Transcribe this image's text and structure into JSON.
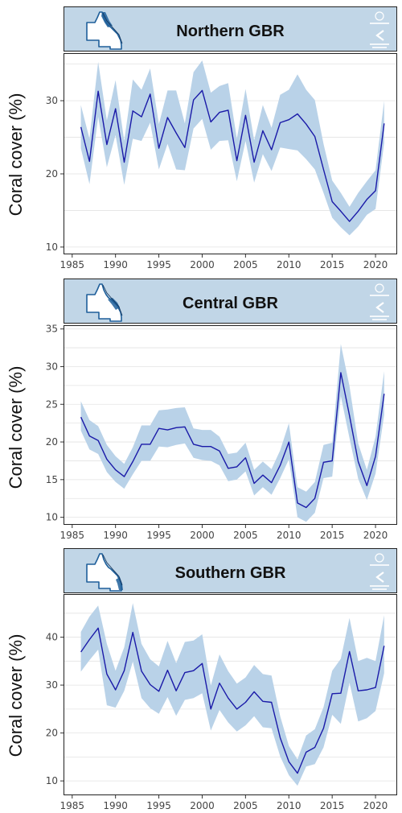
{
  "panels": [
    {
      "title": "Northern GBR",
      "ylabel": "Coral cover (%)",
      "region_highlight": "north"
    },
    {
      "title": "Central GBR",
      "ylabel": "Coral cover (%)",
      "region_highlight": "central"
    },
    {
      "title": "Southern GBR",
      "ylabel": "Coral cover (%)",
      "region_highlight": "south"
    }
  ],
  "colors": {
    "line": "#1a1aa8",
    "band": "#b9d2e8",
    "strip": "#c1d6e7",
    "gridline": "#e3e3e3",
    "map_land": "#ffffff",
    "map_outline": "#1f5f9a",
    "map_highlight": "#1f5f9a"
  },
  "chart_data": [
    {
      "type": "line",
      "title": "Northern GBR",
      "xlabel": "",
      "ylabel": "Coral cover (%)",
      "xlim": [
        1984,
        2022.5
      ],
      "ylim": [
        9,
        36.5
      ],
      "xticks": [
        1985,
        1990,
        1995,
        2000,
        2005,
        2010,
        2015,
        2020
      ],
      "yticks": [
        10,
        20,
        30
      ],
      "grid": true,
      "band": "confidence interval",
      "x": [
        1986,
        1987,
        1988,
        1989,
        1990,
        1991,
        1992,
        1993,
        1994,
        1995,
        1996,
        1997,
        1998,
        1999,
        2000,
        2001,
        2002,
        2003,
        2004,
        2005,
        2006,
        2007,
        2008,
        2009,
        2010,
        2011,
        2012,
        2013,
        2014,
        2015,
        2016,
        2017,
        2018,
        2019,
        2020,
        2021
      ],
      "y": [
        26.4,
        21.7,
        31.3,
        24.0,
        28.9,
        21.6,
        28.6,
        27.8,
        30.9,
        23.5,
        27.7,
        25.6,
        23.6,
        30.1,
        31.4,
        27.1,
        28.4,
        28.7,
        21.8,
        28.0,
        21.6,
        25.9,
        23.3,
        27.0,
        27.4,
        28.2,
        26.8,
        25.1,
        20.6,
        16.2,
        14.9,
        13.5,
        14.9,
        16.5,
        17.7,
        26.9
      ],
      "lower": [
        23.5,
        18.6,
        27.8,
        20.9,
        25.3,
        18.5,
        24.8,
        24.5,
        27.0,
        20.6,
        24.1,
        20.6,
        20.5,
        26.2,
        27.5,
        23.3,
        24.5,
        24.6,
        19.0,
        24.5,
        18.8,
        22.7,
        20.4,
        23.6,
        23.4,
        23.2,
        22.0,
        20.6,
        17.4,
        14.0,
        12.7,
        11.6,
        12.8,
        14.4,
        15.2,
        24.2
      ],
      "upper": [
        29.4,
        24.8,
        35.3,
        27.3,
        32.8,
        24.5,
        32.9,
        31.5,
        34.4,
        26.8,
        31.4,
        31.4,
        26.9,
        33.9,
        35.5,
        31.1,
        32.0,
        32.4,
        24.8,
        31.6,
        24.6,
        29.4,
        26.3,
        30.8,
        31.5,
        33.6,
        31.5,
        30.1,
        24.1,
        19.1,
        17.4,
        15.5,
        17.4,
        19.0,
        20.5,
        30.0
      ]
    },
    {
      "type": "line",
      "title": "Central GBR",
      "xlabel": "",
      "ylabel": "Coral cover (%)",
      "xlim": [
        1984,
        2022.5
      ],
      "ylim": [
        9,
        35.5
      ],
      "xticks": [
        1985,
        1990,
        1995,
        2000,
        2005,
        2010,
        2015,
        2020
      ],
      "yticks": [
        10,
        15,
        20,
        25,
        30,
        35
      ],
      "grid": true,
      "band": "confidence interval",
      "x": [
        1986,
        1987,
        1988,
        1989,
        1990,
        1991,
        1992,
        1993,
        1994,
        1995,
        1996,
        1997,
        1998,
        1999,
        2000,
        2001,
        2002,
        2003,
        2004,
        2005,
        2006,
        2007,
        2008,
        2009,
        2010,
        2011,
        2012,
        2013,
        2014,
        2015,
        2016,
        2017,
        2018,
        2019,
        2020,
        2021
      ],
      "y": [
        23.3,
        20.8,
        20.2,
        17.7,
        16.3,
        15.4,
        17.4,
        19.7,
        19.7,
        21.8,
        21.6,
        21.9,
        22.0,
        19.7,
        19.4,
        19.4,
        18.8,
        16.5,
        16.7,
        17.9,
        14.5,
        15.6,
        14.6,
        16.9,
        20.0,
        11.9,
        11.3,
        12.5,
        17.3,
        17.5,
        29.2,
        23.5,
        17.4,
        14.2,
        18.1,
        26.4
      ],
      "lower": [
        21.5,
        19.0,
        18.4,
        16.0,
        14.7,
        13.8,
        15.7,
        17.5,
        17.5,
        19.4,
        19.3,
        19.6,
        19.8,
        17.9,
        17.6,
        17.5,
        16.9,
        14.8,
        15.0,
        16.1,
        12.9,
        14.0,
        13.0,
        15.2,
        17.7,
        10.0,
        9.4,
        10.6,
        15.2,
        15.4,
        26.1,
        20.5,
        15.1,
        12.3,
        15.8,
        23.6
      ],
      "upper": [
        25.4,
        22.9,
        22.1,
        19.6,
        18.1,
        17.1,
        19.3,
        22.2,
        22.2,
        24.2,
        24.3,
        24.5,
        24.6,
        21.8,
        21.6,
        21.6,
        20.7,
        18.4,
        18.6,
        19.9,
        16.3,
        17.4,
        16.4,
        18.9,
        22.5,
        14.0,
        13.4,
        14.7,
        19.6,
        19.9,
        33.0,
        27.4,
        19.8,
        16.3,
        20.7,
        29.4
      ]
    },
    {
      "type": "line",
      "title": "Southern GBR",
      "xlabel": "",
      "ylabel": "Coral cover (%)",
      "xlim": [
        1984,
        2022.5
      ],
      "ylim": [
        7,
        49
      ],
      "xticks": [
        1985,
        1990,
        1995,
        2000,
        2005,
        2010,
        2015,
        2020
      ],
      "yticks": [
        10,
        20,
        30,
        40
      ],
      "grid": true,
      "band": "confidence interval",
      "x": [
        1986,
        1987,
        1988,
        1989,
        1990,
        1991,
        1992,
        1993,
        1994,
        1995,
        1996,
        1997,
        1998,
        1999,
        2000,
        2001,
        2002,
        2003,
        2004,
        2005,
        2006,
        2007,
        2008,
        2009,
        2010,
        2011,
        2012,
        2013,
        2014,
        2015,
        2016,
        2017,
        2018,
        2019,
        2020,
        2021
      ],
      "y": [
        36.9,
        39.5,
        41.9,
        32.3,
        29.0,
        33.0,
        41.0,
        32.9,
        30.1,
        28.7,
        33.1,
        28.8,
        32.6,
        33.0,
        34.5,
        25.0,
        30.4,
        27.3,
        25.0,
        26.4,
        28.6,
        26.6,
        26.4,
        19.0,
        14.0,
        11.6,
        16.0,
        17.0,
        21.0,
        28.2,
        28.3,
        37.0,
        28.8,
        29.0,
        29.5,
        38.2
      ],
      "lower": [
        32.8,
        35.2,
        37.4,
        25.8,
        25.3,
        28.8,
        34.9,
        27.3,
        25.2,
        24.0,
        27.5,
        23.6,
        26.9,
        27.3,
        28.3,
        20.5,
        24.8,
        22.2,
        20.3,
        21.6,
        23.5,
        21.2,
        21.0,
        15.1,
        11.2,
        9.0,
        13.0,
        13.5,
        17.0,
        23.8,
        21.9,
        30.5,
        22.4,
        23.1,
        24.6,
        32.5
      ],
      "upper": [
        41.1,
        44.3,
        46.6,
        38.6,
        33.0,
        37.9,
        47.1,
        38.6,
        35.4,
        33.9,
        39.2,
        34.6,
        39.0,
        39.3,
        40.6,
        29.9,
        36.4,
        32.9,
        30.3,
        31.6,
        34.2,
        32.3,
        32.0,
        23.5,
        17.3,
        14.5,
        19.5,
        20.8,
        25.4,
        33.0,
        35.5,
        44.0,
        35.0,
        35.7,
        35.0,
        44.6
      ]
    }
  ]
}
